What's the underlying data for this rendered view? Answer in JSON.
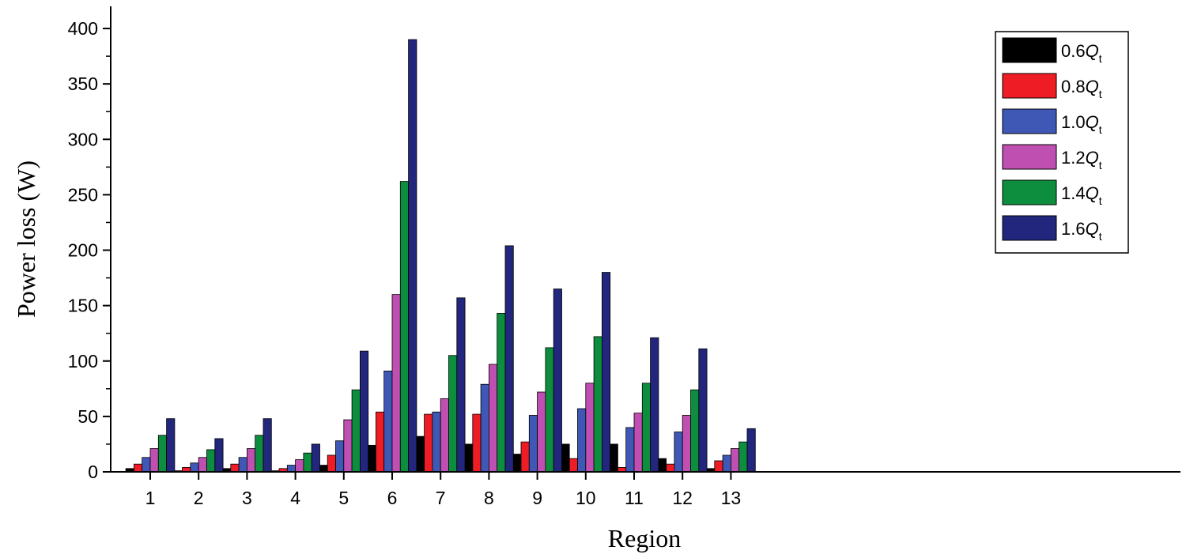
{
  "chart_data": {
    "type": "bar",
    "xlabel": "Region",
    "ylabel": "Power loss (W)",
    "ylim": [
      0,
      420
    ],
    "yticks": [
      0,
      50,
      100,
      150,
      200,
      250,
      300,
      350,
      400
    ],
    "categories": [
      "1",
      "2",
      "3",
      "4",
      "5",
      "6",
      "7",
      "8",
      "9",
      "10",
      "11",
      "12",
      "13"
    ],
    "legend_position": "top-right",
    "series": [
      {
        "name": "0.6",
        "sub": "t",
        "color": "#000000",
        "values": [
          3,
          1,
          3,
          1,
          6,
          24,
          32,
          25,
          16,
          25,
          25,
          12,
          3
        ]
      },
      {
        "name": "0.8",
        "sub": "t",
        "color": "#ee1c25",
        "values": [
          7,
          4,
          7,
          3,
          15,
          54,
          52,
          52,
          27,
          12,
          4,
          7,
          10
        ]
      },
      {
        "name": "1.0",
        "sub": "t",
        "color": "#3f57b5",
        "values": [
          13,
          8,
          13,
          6,
          28,
          91,
          54,
          79,
          51,
          57,
          40,
          36,
          15
        ]
      },
      {
        "name": "1.2",
        "sub": "t",
        "color": "#bf4fb0",
        "values": [
          21,
          13,
          21,
          11,
          47,
          160,
          66,
          97,
          72,
          80,
          53,
          51,
          21
        ]
      },
      {
        "name": "1.4",
        "sub": "t",
        "color": "#0d8e3e",
        "values": [
          33,
          20,
          33,
          17,
          74,
          262,
          105,
          143,
          112,
          122,
          80,
          74,
          27
        ]
      },
      {
        "name": "1.6",
        "sub": "t",
        "color": "#22267c",
        "values": [
          48,
          30,
          48,
          25,
          109,
          390,
          157,
          204,
          165,
          180,
          121,
          111,
          39
        ]
      }
    ]
  }
}
